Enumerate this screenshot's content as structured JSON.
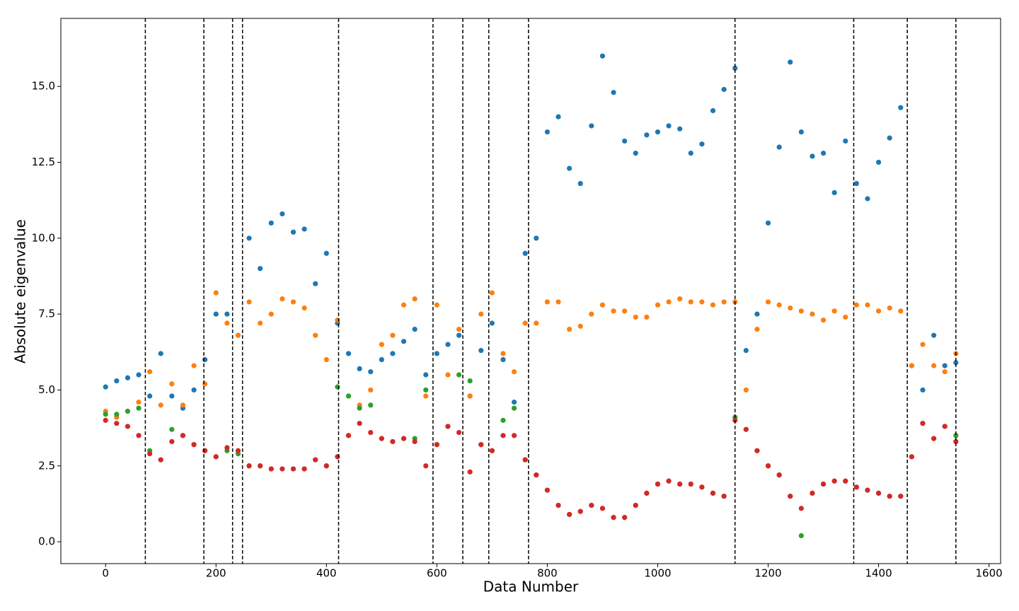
{
  "chart_data": {
    "type": "scatter",
    "xlabel": "Data Number",
    "ylabel": "Absolute eigenvalue",
    "xlim": [
      -81,
      1621
    ],
    "ylim": [
      -0.72,
      17.24
    ],
    "xticks": [
      0,
      200,
      400,
      600,
      800,
      1000,
      1200,
      1400,
      1600
    ],
    "yticks": [
      {
        "value": 0,
        "label": "0.0"
      },
      2.5,
      {
        "value": 5,
        "label": "5.0"
      },
      7.5,
      {
        "value": 10,
        "label": "10.0"
      },
      12.5,
      {
        "value": 15,
        "label": "15.0"
      }
    ],
    "vlines": [
      72,
      178,
      230,
      248,
      422,
      593,
      647,
      694,
      766,
      1140,
      1355,
      1452,
      1540
    ],
    "x": [
      0,
      20,
      40,
      60,
      80,
      100,
      120,
      140,
      160,
      180,
      200,
      220,
      240,
      260,
      280,
      300,
      320,
      340,
      360,
      380,
      400,
      420,
      440,
      460,
      480,
      500,
      520,
      540,
      560,
      580,
      600,
      620,
      640,
      660,
      680,
      700,
      720,
      740,
      760,
      780,
      800,
      820,
      840,
      860,
      880,
      900,
      920,
      940,
      960,
      980,
      1000,
      1020,
      1040,
      1060,
      1080,
      1100,
      1120,
      1140,
      1160,
      1180,
      1200,
      1220,
      1240,
      1260,
      1280,
      1300,
      1320,
      1340,
      1360,
      1380,
      1400,
      1420,
      1440,
      1460,
      1480,
      1500,
      1520,
      1540
    ],
    "series": [
      {
        "color": "#1f77b4",
        "values": [
          5.1,
          5.3,
          5.4,
          5.5,
          4.8,
          6.2,
          4.8,
          4.4,
          5.0,
          6.0,
          7.5,
          7.5,
          6.8,
          10.0,
          9.0,
          10.5,
          10.8,
          10.2,
          10.3,
          8.5,
          9.5,
          7.2,
          6.2,
          5.7,
          5.6,
          6.0,
          6.2,
          6.6,
          7.0,
          5.5,
          6.2,
          6.5,
          6.8,
          4.8,
          6.3,
          7.2,
          6.0,
          4.6,
          9.5,
          10.0,
          13.5,
          14.0,
          12.3,
          11.8,
          13.7,
          16.0,
          14.8,
          13.2,
          12.8,
          13.4,
          13.5,
          13.7,
          13.6,
          12.8,
          13.1,
          14.2,
          14.9,
          15.6,
          6.3,
          7.5,
          10.5,
          13.0,
          15.8,
          13.5,
          12.7,
          12.8,
          11.5,
          13.2,
          11.8,
          11.3,
          12.5,
          13.3,
          14.3,
          5.8,
          5.0,
          6.8,
          5.8,
          5.9
        ]
      },
      {
        "color": "#ff7f0e",
        "values": [
          4.3,
          4.1,
          4.3,
          4.6,
          5.6,
          4.5,
          5.2,
          4.5,
          5.8,
          5.2,
          8.2,
          7.2,
          6.8,
          7.9,
          7.2,
          7.5,
          8.0,
          7.9,
          7.7,
          6.8,
          6.0,
          7.3,
          3.5,
          4.5,
          5.0,
          6.5,
          6.8,
          7.8,
          8.0,
          4.8,
          7.8,
          5.5,
          7.0,
          4.8,
          7.5,
          8.2,
          6.2,
          5.6,
          7.2,
          7.2,
          7.9,
          7.9,
          7.0,
          7.1,
          7.5,
          7.8,
          7.6,
          7.6,
          7.4,
          7.4,
          7.8,
          7.9,
          8.0,
          7.9,
          7.9,
          7.8,
          7.9,
          7.9,
          5.0,
          7.0,
          7.9,
          7.8,
          7.7,
          7.6,
          7.5,
          7.3,
          7.6,
          7.4,
          7.8,
          7.8,
          7.6,
          7.7,
          7.6,
          5.8,
          6.5,
          5.8,
          5.6,
          6.2
        ]
      },
      {
        "color": "#2ca02c",
        "values": [
          4.2,
          4.2,
          4.3,
          4.4,
          3.0,
          2.7,
          3.7,
          3.5,
          3.2,
          3.0,
          2.8,
          3.0,
          2.9,
          2.5,
          2.5,
          2.4,
          2.4,
          2.4,
          2.4,
          2.7,
          2.5,
          5.1,
          4.8,
          4.4,
          4.5,
          3.4,
          3.3,
          3.4,
          3.4,
          5.0,
          3.2,
          3.8,
          5.5,
          5.3,
          3.2,
          3.0,
          4.0,
          4.4,
          2.7,
          2.2,
          1.7,
          1.2,
          0.9,
          1.0,
          1.2,
          1.1,
          0.8,
          0.8,
          1.2,
          1.6,
          1.9,
          2.0,
          1.9,
          1.9,
          1.8,
          1.6,
          1.5,
          4.1,
          3.7,
          3.0,
          2.5,
          2.2,
          1.5,
          0.2,
          1.6,
          1.9,
          2.0,
          2.0,
          1.8,
          1.7,
          1.6,
          1.5,
          1.5,
          2.8,
          3.9,
          3.4,
          3.8,
          3.5
        ]
      },
      {
        "color": "#d62728",
        "values": [
          4.0,
          3.9,
          3.8,
          3.5,
          2.9,
          2.7,
          3.3,
          3.5,
          3.2,
          3.0,
          2.8,
          3.1,
          3.0,
          2.5,
          2.5,
          2.4,
          2.4,
          2.4,
          2.4,
          2.7,
          2.5,
          2.8,
          3.5,
          3.9,
          3.6,
          3.4,
          3.3,
          3.4,
          3.3,
          2.5,
          3.2,
          3.8,
          3.6,
          2.3,
          3.2,
          3.0,
          3.5,
          3.5,
          2.7,
          2.2,
          1.7,
          1.2,
          0.9,
          1.0,
          1.2,
          1.1,
          0.8,
          0.8,
          1.2,
          1.6,
          1.9,
          2.0,
          1.9,
          1.9,
          1.8,
          1.6,
          1.5,
          4.0,
          3.7,
          3.0,
          2.5,
          2.2,
          1.5,
          1.1,
          1.6,
          1.9,
          2.0,
          2.0,
          1.8,
          1.7,
          1.6,
          1.5,
          1.5,
          2.8,
          3.9,
          3.4,
          3.8,
          3.3
        ]
      }
    ]
  }
}
